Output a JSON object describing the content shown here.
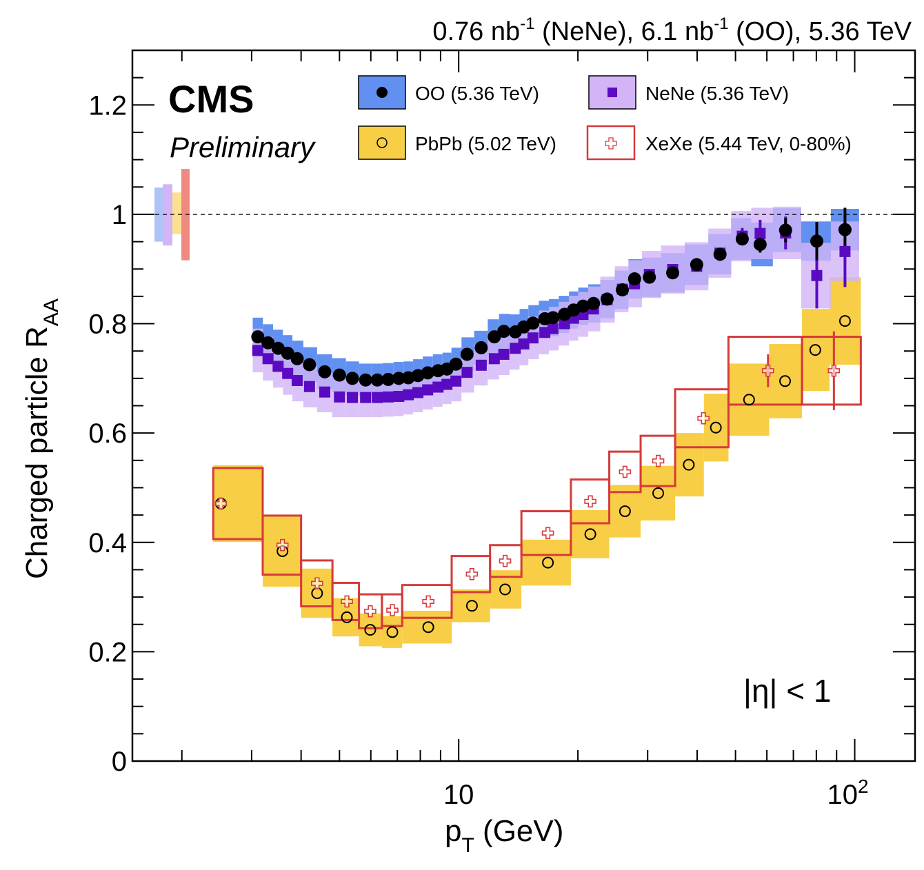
{
  "chart_data": {
    "type": "scatter",
    "title": "",
    "header_right": {
      "lumi1": "0.76 nb",
      "lumi1_sup": "-1",
      "lumi1_sys": " (NeNe), 6.1 nb",
      "lumi2_sup": "-1",
      "tail": " (OO), 5.36 TeV"
    },
    "cms_label": "CMS",
    "cms_sublabel": "Preliminary",
    "annotation": "|η| < 1",
    "xlabel": "p",
    "xlabel_sub": "T",
    "xlabel_tail": " (GeV)",
    "ylabel": "Charged particle R",
    "ylabel_sub": "AA",
    "xscale": "log",
    "xlim": [
      1.5,
      142
    ],
    "ylim": [
      0,
      1.3
    ],
    "x_tick_labels": [
      {
        "value": 10,
        "label": "10"
      },
      {
        "value": 100,
        "label": "10",
        "sup": "2"
      }
    ],
    "y_tick_labels": [
      {
        "value": 0,
        "label": "0"
      },
      {
        "value": 0.2,
        "label": "0.2"
      },
      {
        "value": 0.4,
        "label": "0.4"
      },
      {
        "value": 0.6,
        "label": "0.6"
      },
      {
        "value": 0.8,
        "label": "0.8"
      },
      {
        "value": 1.0,
        "label": "1"
      },
      {
        "value": 1.2,
        "label": "1.2"
      }
    ],
    "reference_line": 1.0,
    "legend_position": "top",
    "legend": [
      {
        "key": "OO",
        "label": "OO (5.36 TeV)"
      },
      {
        "key": "NeNe",
        "label": "NeNe (5.36 TeV)"
      },
      {
        "key": "PbPb",
        "label": "PbPb (5.02 TeV)"
      },
      {
        "key": "XeXe",
        "label": "XeXe (5.44 TeV, 0-80%)"
      }
    ],
    "normalization_uncertainties": [
      {
        "series": "OO",
        "low": 0.95,
        "high": 1.049,
        "color": "#aec4f7"
      },
      {
        "series": "NeNe",
        "low": 0.943,
        "high": 1.055,
        "color": "#d2b4f7"
      },
      {
        "series": "PbPb",
        "low": 0.964,
        "high": 1.04,
        "color": "#fbe18f"
      },
      {
        "series": "XeXe",
        "low": 0.916,
        "high": 1.083,
        "color": "#f08a80"
      }
    ],
    "series": [
      {
        "name": "OO (5.36 TeV)",
        "key": "OO",
        "marker": "filled-circle",
        "marker_color": "#000000",
        "sys_color": "#6290f0",
        "x": [
          3.11,
          3.3,
          3.5,
          3.7,
          3.91,
          4.2,
          4.59,
          5.0,
          5.39,
          5.82,
          6.23,
          6.64,
          7.06,
          7.46,
          7.89,
          8.35,
          8.87,
          9.34,
          9.84,
          10.5,
          11.4,
          12.3,
          13.0,
          13.9,
          14.6,
          15.4,
          16.5,
          17.3,
          18.5,
          19.5,
          20.6,
          21.9,
          23.7,
          25.9,
          27.8,
          30.3,
          34.7,
          39.9,
          45.7,
          52.0,
          57.7,
          66.9,
          80.2,
          94.5
        ],
        "y": [
          0.776,
          0.765,
          0.755,
          0.746,
          0.736,
          0.725,
          0.712,
          0.706,
          0.7,
          0.697,
          0.697,
          0.698,
          0.7,
          0.701,
          0.705,
          0.71,
          0.714,
          0.717,
          0.726,
          0.744,
          0.756,
          0.776,
          0.786,
          0.785,
          0.794,
          0.801,
          0.809,
          0.811,
          0.817,
          0.825,
          0.832,
          0.837,
          0.845,
          0.862,
          0.882,
          0.885,
          0.893,
          0.908,
          0.927,
          0.955,
          0.945,
          0.971,
          0.951,
          0.972
        ],
        "sys": [
          0.035,
          0.034,
          0.034,
          0.033,
          0.033,
          0.032,
          0.032,
          0.031,
          0.031,
          0.03,
          0.03,
          0.03,
          0.03,
          0.03,
          0.03,
          0.03,
          0.03,
          0.03,
          0.03,
          0.031,
          0.031,
          0.032,
          0.032,
          0.032,
          0.033,
          0.033,
          0.033,
          0.034,
          0.034,
          0.034,
          0.034,
          0.035,
          0.035,
          0.035,
          0.036,
          0.036,
          0.036,
          0.037,
          0.037,
          0.038,
          0.04,
          0.04,
          0.036,
          0.038
        ],
        "stat": [
          0,
          0,
          0,
          0,
          0,
          0,
          0,
          0,
          0,
          0,
          0,
          0,
          0,
          0,
          0,
          0,
          0,
          0,
          0,
          0,
          0,
          0,
          0,
          0,
          0,
          0,
          0,
          0,
          0,
          0,
          0,
          0,
          0,
          0,
          0,
          0,
          0,
          0.004,
          0.007,
          0.01,
          0.015,
          0.022,
          0.035,
          0.04
        ]
      },
      {
        "name": "NeNe (5.36 TeV)",
        "key": "NeNe",
        "marker": "filled-square",
        "marker_color": "#5a0bc2",
        "sys_color": "#d2b4f7",
        "x": [
          3.11,
          3.3,
          3.5,
          3.7,
          3.91,
          4.2,
          4.59,
          5.0,
          5.39,
          5.82,
          6.23,
          6.64,
          7.06,
          7.46,
          7.89,
          8.35,
          8.87,
          9.34,
          9.84,
          10.5,
          11.4,
          12.3,
          13.0,
          13.9,
          14.6,
          15.4,
          16.5,
          17.3,
          18.5,
          19.5,
          20.6,
          21.9,
          23.7,
          25.9,
          27.8,
          30.3,
          34.7,
          39.9,
          45.7,
          52.0,
          57.7,
          66.9,
          80.2,
          94.5
        ],
        "y": [
          0.751,
          0.736,
          0.722,
          0.709,
          0.696,
          0.685,
          0.675,
          0.666,
          0.665,
          0.665,
          0.665,
          0.666,
          0.667,
          0.67,
          0.674,
          0.679,
          0.684,
          0.689,
          0.695,
          0.711,
          0.724,
          0.736,
          0.744,
          0.755,
          0.763,
          0.774,
          0.784,
          0.791,
          0.8,
          0.81,
          0.817,
          0.827,
          0.844,
          0.863,
          0.873,
          0.89,
          0.899,
          0.905,
          0.929,
          0.96,
          0.965,
          0.966,
          0.888,
          0.932
        ],
        "sys": [
          0.04,
          0.04,
          0.039,
          0.039,
          0.038,
          0.038,
          0.037,
          0.037,
          0.036,
          0.036,
          0.036,
          0.036,
          0.036,
          0.036,
          0.036,
          0.036,
          0.036,
          0.036,
          0.037,
          0.037,
          0.037,
          0.038,
          0.038,
          0.039,
          0.039,
          0.039,
          0.04,
          0.04,
          0.04,
          0.041,
          0.041,
          0.041,
          0.042,
          0.042,
          0.043,
          0.043,
          0.044,
          0.044,
          0.045,
          0.046,
          0.047,
          0.048,
          0.06,
          0.055
        ],
        "stat": [
          0,
          0,
          0,
          0,
          0,
          0,
          0,
          0,
          0,
          0,
          0,
          0,
          0,
          0,
          0,
          0,
          0,
          0,
          0,
          0,
          0,
          0,
          0,
          0,
          0,
          0,
          0,
          0,
          0,
          0,
          0,
          0,
          0,
          0,
          0,
          0,
          0,
          0.006,
          0.01,
          0.015,
          0.025,
          0.03,
          0.06,
          0.065
        ]
      },
      {
        "name": "PbPb (5.02 TeV)",
        "key": "PbPb",
        "marker": "open-circle",
        "marker_color": "#000000",
        "sys_color": "#f7ce46",
        "x": [
          2.51,
          3.59,
          4.39,
          5.22,
          5.98,
          6.8,
          8.38,
          10.8,
          13.1,
          16.8,
          21.5,
          26.3,
          31.9,
          38.1,
          44.6,
          54.1,
          66.7,
          79.5,
          94.5
        ],
        "y": [
          0.471,
          0.384,
          0.307,
          0.263,
          0.24,
          0.236,
          0.245,
          0.284,
          0.314,
          0.363,
          0.415,
          0.457,
          0.49,
          0.542,
          0.61,
          0.661,
          0.695,
          0.752,
          0.805
        ],
        "sys": [
          0.07,
          0.065,
          0.045,
          0.035,
          0.03,
          0.029,
          0.03,
          0.03,
          0.035,
          0.042,
          0.044,
          0.048,
          0.05,
          0.058,
          0.062,
          0.066,
          0.068,
          0.075,
          0.08
        ],
        "x_low": [
          2.4,
          3.2,
          4.0,
          4.8,
          5.6,
          6.4,
          7.2,
          9.6,
          12.0,
          14.4,
          19.2,
          24.0,
          28.8,
          35.2,
          41.6,
          48.0,
          60.8,
          73.6,
          86.4
        ],
        "x_high": [
          3.2,
          4.0,
          4.8,
          5.6,
          6.4,
          7.2,
          9.6,
          12.0,
          14.4,
          19.2,
          24.0,
          28.8,
          35.2,
          41.6,
          48.0,
          60.8,
          73.6,
          86.4,
          103.6
        ]
      },
      {
        "name": "XeXe (5.44 TeV, 0-80%)",
        "key": "XeXe",
        "marker": "open-cross",
        "marker_color": "#d63a3a",
        "sys_color": "#d63a3a",
        "x": [
          2.51,
          3.59,
          4.39,
          5.22,
          5.98,
          6.8,
          8.38,
          10.8,
          13.1,
          16.8,
          21.5,
          26.3,
          31.9,
          41.5,
          60.4,
          88.6
        ],
        "y": [
          0.471,
          0.395,
          0.325,
          0.292,
          0.274,
          0.276,
          0.292,
          0.342,
          0.366,
          0.417,
          0.475,
          0.529,
          0.549,
          0.627,
          0.714,
          0.714
        ],
        "sys": [
          0.065,
          0.054,
          0.042,
          0.034,
          0.031,
          0.029,
          0.03,
          0.033,
          0.029,
          0.04,
          0.04,
          0.037,
          0.046,
          0.053,
          0.062,
          0.062
        ],
        "stat": [
          0,
          0,
          0,
          0,
          0,
          0,
          0,
          0,
          0,
          0,
          0,
          0,
          0,
          0,
          0.03,
          0.072
        ],
        "x_low": [
          2.4,
          3.2,
          4.0,
          4.8,
          5.6,
          6.4,
          7.2,
          9.6,
          12.0,
          14.4,
          19.2,
          24.0,
          28.8,
          35.2,
          48.0,
          73.6
        ],
        "x_high": [
          3.2,
          4.0,
          4.8,
          5.6,
          6.4,
          7.2,
          9.6,
          12.0,
          14.4,
          19.2,
          24.0,
          28.8,
          35.2,
          48.0,
          73.6,
          103.6
        ]
      }
    ]
  }
}
